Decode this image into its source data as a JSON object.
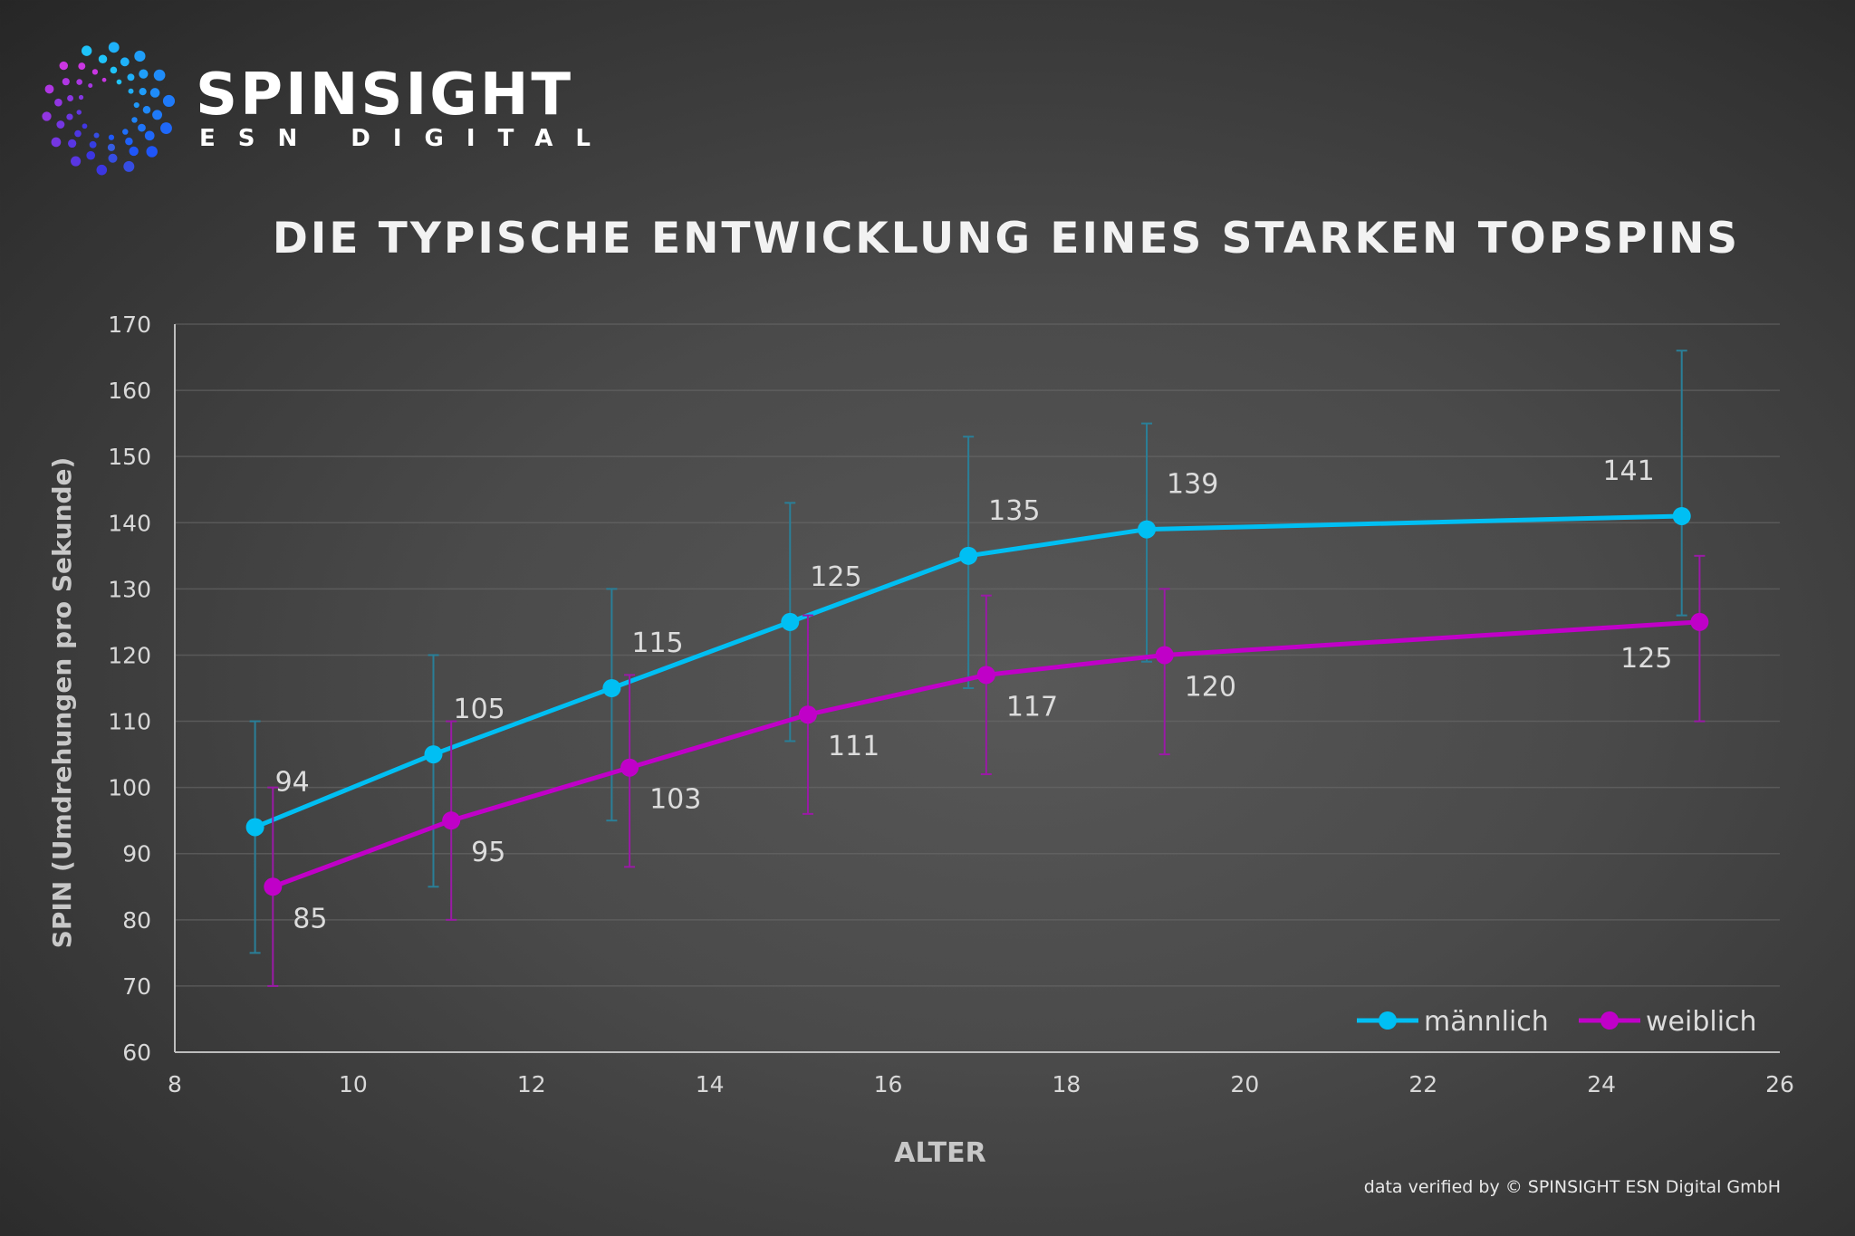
{
  "brand": {
    "name": "SPINSIGHT",
    "subtitle": "ESN DIGITAL"
  },
  "footer": "data verified by © SPINSIGHT ESN Digital GmbH",
  "chart_data": {
    "type": "line",
    "title": "DIE TYPISCHE ENTWICKLUNG EINES STARKEN TOPSPINS",
    "xlabel": "ALTER",
    "ylabel": "SPIN (Umdrehungen pro Sekunde)",
    "xlim": [
      8,
      26
    ],
    "ylim": [
      60,
      170
    ],
    "xticks": [
      8,
      10,
      12,
      14,
      16,
      18,
      20,
      22,
      24,
      26
    ],
    "yticks": [
      60,
      70,
      80,
      90,
      100,
      110,
      120,
      130,
      140,
      150,
      160,
      170
    ],
    "grid": "horizontal",
    "legend": "bottom-right",
    "error_bars": true,
    "series": [
      {
        "name": "männlich",
        "color": "#00bff3",
        "error_color": "#2a7f98",
        "x": [
          8.9,
          10.9,
          12.9,
          14.9,
          16.9,
          18.9,
          24.9
        ],
        "y": [
          94,
          105,
          115,
          125,
          135,
          139,
          141
        ],
        "err_low": [
          75,
          85,
          95,
          107,
          115,
          119,
          126
        ],
        "err_high": [
          110,
          120,
          130,
          143,
          153,
          155,
          166
        ]
      },
      {
        "name": "weiblich",
        "color": "#c000c8",
        "error_color": "#9a1aa6",
        "x": [
          9.1,
          11.1,
          13.1,
          15.1,
          17.1,
          19.1,
          25.1
        ],
        "y": [
          85,
          95,
          103,
          111,
          117,
          120,
          125
        ],
        "err_low": [
          70,
          80,
          88,
          96,
          102,
          105,
          110
        ],
        "err_high": [
          100,
          110,
          117,
          126,
          129,
          130,
          135
        ]
      }
    ]
  }
}
